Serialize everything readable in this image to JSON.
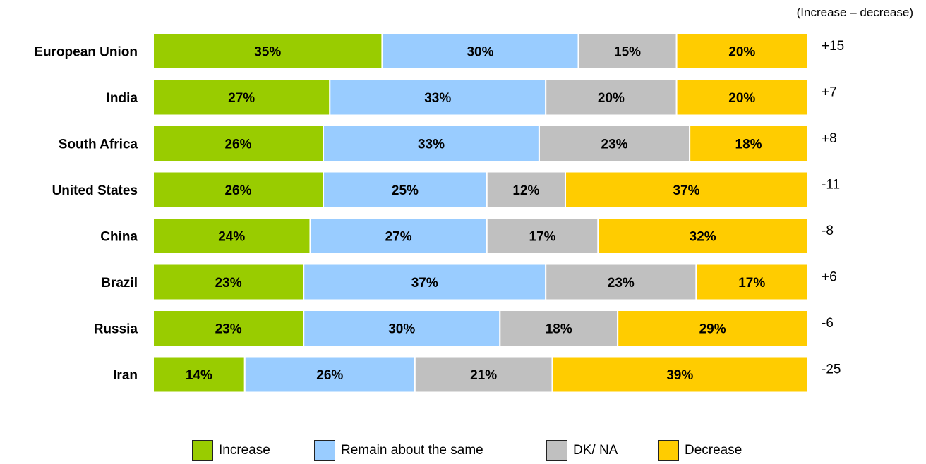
{
  "chart_data": {
    "type": "bar",
    "orientation": "horizontal",
    "stacked": true,
    "net_header": "(Increase – decrease)",
    "categories": [
      "European Union",
      "India",
      "South Africa",
      "United States",
      "China",
      "Brazil",
      "Russia",
      "Iran"
    ],
    "series": [
      {
        "name": "Increase",
        "color": "#99cc00",
        "values": [
          35,
          27,
          26,
          26,
          24,
          23,
          23,
          14
        ],
        "labels": [
          "35%",
          "27%",
          "26%",
          "26%",
          "24%",
          "23%",
          "23%",
          "14%"
        ]
      },
      {
        "name": "Remain about the same",
        "color": "#99ccff",
        "values": [
          30,
          33,
          33,
          25,
          27,
          37,
          30,
          26
        ],
        "labels": [
          "30%",
          "33%",
          "33%",
          "25%",
          "27%",
          "37%",
          "30%",
          "26%"
        ]
      },
      {
        "name": "DK/ NA",
        "color": "#c0c0c0",
        "values": [
          15,
          20,
          23,
          12,
          17,
          23,
          18,
          21
        ],
        "labels": [
          "15%",
          "20%",
          "23%",
          "12%",
          "17%",
          "23%",
          "18%",
          "21%"
        ]
      },
      {
        "name": "Decrease",
        "color": "#ffcc00",
        "values": [
          20,
          20,
          18,
          37,
          32,
          17,
          29,
          39
        ],
        "labels": [
          "20%",
          "20%",
          "18%",
          "37%",
          "32%",
          "17%",
          "29%",
          "39%"
        ]
      }
    ],
    "net_values": [
      "+15",
      "+7",
      "+8",
      "-11",
      "-8",
      "+6",
      "-6",
      "-25"
    ],
    "grid": false,
    "legend_position": "bottom"
  }
}
